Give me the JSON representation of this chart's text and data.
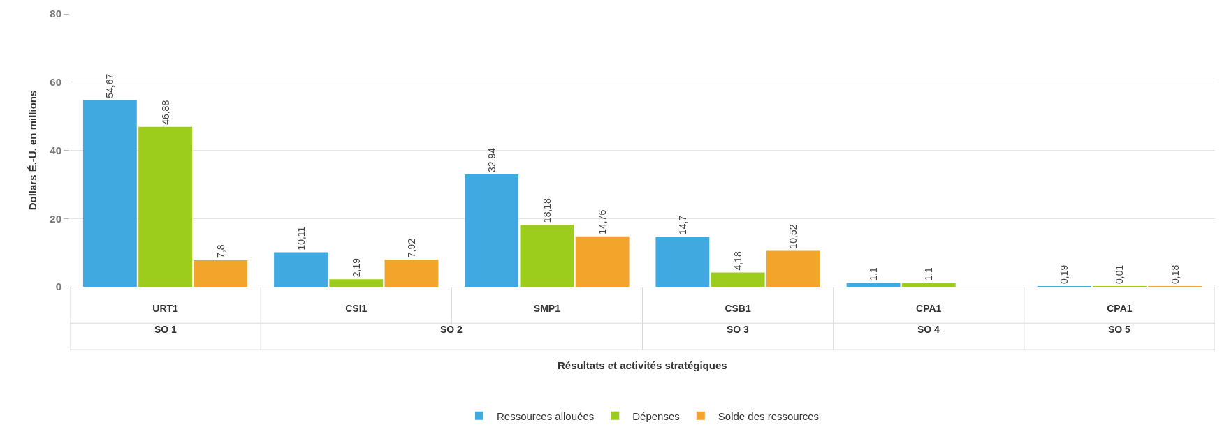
{
  "chart_data": {
    "type": "bar",
    "xlabel": "Résultats et activités stratégiques",
    "ylabel": "Dollars É.-U. en millions",
    "categories": [
      "URT1",
      "CSI1",
      "SMP1",
      "CSB1",
      "CPA1",
      "CPA1"
    ],
    "series": [
      {
        "name": "Ressources allouées",
        "color": "#3fa9e0",
        "values": [
          54.67,
          10.11,
          32.94,
          14.7,
          1.1,
          0.19
        ],
        "value_labels": [
          "54,67",
          "10,11",
          "32,94",
          "14,7",
          "1,1",
          "0,19"
        ]
      },
      {
        "name": "Dépenses",
        "color": "#9ccc1c",
        "values": [
          46.88,
          2.19,
          18.18,
          4.18,
          1.1,
          0.01
        ],
        "value_labels": [
          "46,88",
          "2,19",
          "18,18",
          "4,18",
          "1,1",
          "0,01"
        ]
      },
      {
        "name": "Solde des ressources",
        "color": "#f2a52a",
        "values": [
          7.8,
          7.92,
          14.76,
          10.52,
          0,
          0.18
        ],
        "value_labels": [
          "7,8",
          "7,92",
          "14,76",
          "10,52",
          null,
          "0,18"
        ]
      }
    ],
    "annotations": [
      "SO 1",
      "SO 2",
      "SO 3",
      "SO 4",
      "SO 5"
    ],
    "ylim": [
      0,
      80
    ],
    "yticks": [
      0,
      20,
      40,
      60,
      80
    ],
    "grid": "y",
    "legend": "bottom"
  }
}
